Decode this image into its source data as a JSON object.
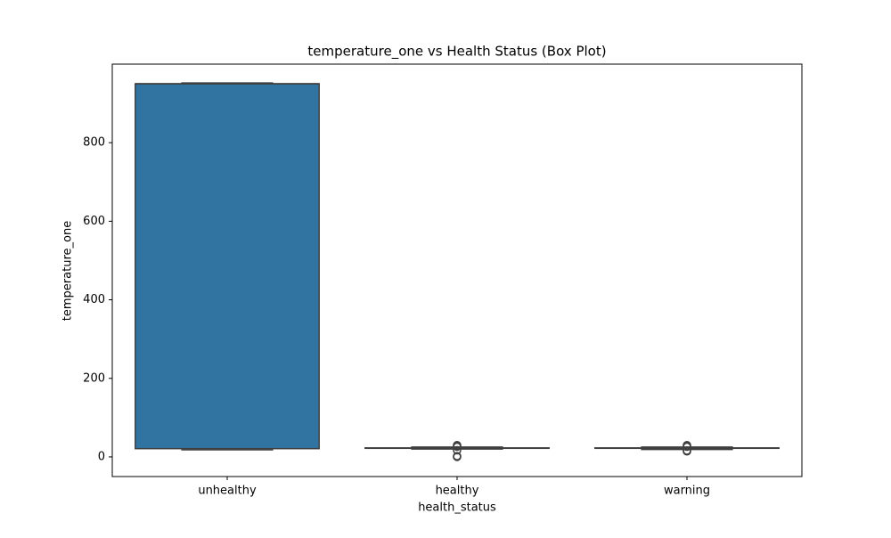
{
  "chart_data": {
    "type": "box",
    "title": "temperature_one vs Health Status (Box Plot)",
    "x_label": "health_status",
    "y_label": "temperature_one",
    "categories": [
      "unhealthy",
      "healthy",
      "warning"
    ],
    "color": "#3274a1",
    "edge_color": "#3f3f3f",
    "boxes": [
      {
        "min": 18,
        "q1": 21,
        "median": 950,
        "q3": 950,
        "max": 952,
        "outliers": []
      },
      {
        "min": 20,
        "q1": 22,
        "median": 22,
        "q3": 23,
        "max": 25,
        "outliers": [
          0,
          2,
          17,
          26,
          28,
          30
        ]
      },
      {
        "min": 19,
        "q1": 22,
        "median": 22,
        "q3": 23,
        "max": 25,
        "outliers": [
          14,
          16,
          26,
          28,
          30
        ]
      }
    ],
    "ylim": [
      -50,
      1000
    ],
    "yticks": [
      0,
      200,
      400,
      600,
      800
    ]
  }
}
